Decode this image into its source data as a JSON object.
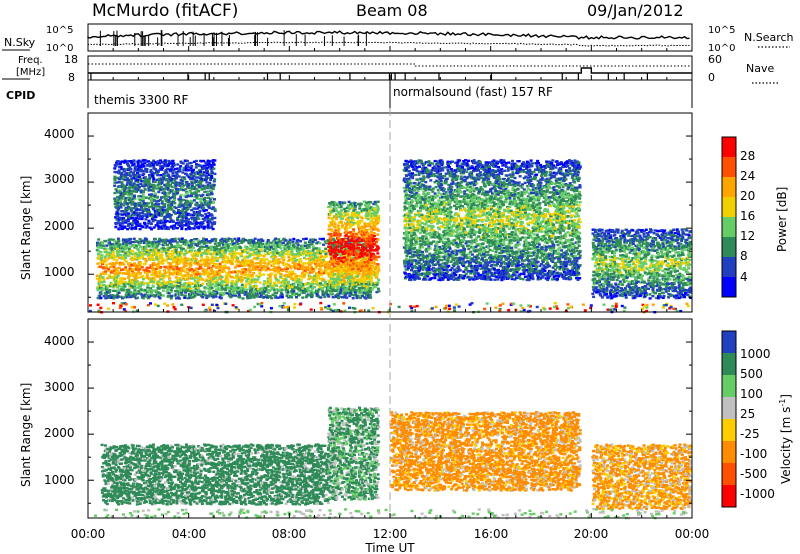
{
  "header": {
    "station": "McMurdo (fitACF)",
    "beam": "Beam 08",
    "date": "09/Jan/2012"
  },
  "noise_panel": {
    "left_label": "N.Sky",
    "left_ticks": [
      "10^5",
      "10^0"
    ],
    "right_ticks": [
      "10^5",
      "10^0"
    ],
    "right_label": "N.Search"
  },
  "freq_panel": {
    "left_label_1": "Freq.",
    "left_label_2": "[MHz]",
    "left_ticks": [
      "18",
      "8"
    ],
    "right_ticks": [
      "60",
      "0"
    ],
    "right_label": "Nave"
  },
  "cpid_panel": {
    "label": "CPID",
    "modes": [
      "themis 3300 RF",
      "normalsound (fast) 157 RF"
    ]
  },
  "x_axis": {
    "label": "Time UT",
    "ticks": [
      "00:00",
      "04:00",
      "08:00",
      "12:00",
      "16:00",
      "20:00",
      "00:00"
    ]
  },
  "range_axis": {
    "label": "Slant Range [km]",
    "ticks": [
      "1000",
      "2000",
      "3000",
      "4000"
    ]
  },
  "power_scale": {
    "label": "Power [dB]",
    "ticks": [
      "4",
      "8",
      "12",
      "16",
      "20",
      "24",
      "28"
    ],
    "colors": [
      "#0000ff",
      "#2040c0",
      "#2e8b57",
      "#66cd66",
      "#f0d000",
      "#ffa500",
      "#ff5000",
      "#ff0000"
    ]
  },
  "velocity_scale": {
    "label_main": "Velocity [m s",
    "label_sup": "-1",
    "label_end": "]",
    "ticks": [
      "1000",
      "500",
      "100",
      "25",
      "-25",
      "-100",
      "-500",
      "-1000"
    ],
    "colors": [
      "#2040c0",
      "#2e8b57",
      "#66cd66",
      "#c0c0c0",
      "#ffcc00",
      "#ff8c00",
      "#ff5000",
      "#ff0000"
    ]
  },
  "chart_data": [
    {
      "type": "heatmap",
      "title": "Power",
      "xlabel": "Time UT",
      "ylabel": "Slant Range [km]",
      "x_range_hours": [
        0,
        24
      ],
      "ylim_km": [
        180,
        4500
      ],
      "colorbar": "Power [dB]",
      "colorbar_range": [
        0,
        30
      ],
      "echo_regions": [
        {
          "start_h": 0.3,
          "end_h": 11.2,
          "range_low_km": 500,
          "range_high_km": 1800,
          "value_dB": 18
        },
        {
          "start_h": 1.0,
          "end_h": 5.0,
          "range_low_km": 2000,
          "range_high_km": 3500,
          "value_dB": 8
        },
        {
          "start_h": 9.5,
          "end_h": 11.5,
          "range_low_km": 600,
          "range_high_km": 2600,
          "value_dB": 24
        },
        {
          "start_h": 12.5,
          "end_h": 19.5,
          "range_low_km": 900,
          "range_high_km": 3500,
          "value_dB": 12
        },
        {
          "start_h": 20.0,
          "end_h": 23.9,
          "range_low_km": 500,
          "range_high_km": 2000,
          "value_dB": 12
        }
      ]
    },
    {
      "type": "heatmap",
      "title": "Velocity",
      "xlabel": "Time UT",
      "ylabel": "Slant Range [km]",
      "x_range_hours": [
        0,
        24
      ],
      "ylim_km": [
        180,
        4500
      ],
      "colorbar": "Velocity [m s-1]",
      "colorbar_range": [
        -1000,
        1000
      ],
      "echo_regions": [
        {
          "start_h": 0.5,
          "end_h": 9.5,
          "range_low_km": 500,
          "range_high_km": 1800,
          "value_ms": 300
        },
        {
          "start_h": 9.5,
          "end_h": 11.5,
          "range_low_km": 600,
          "range_high_km": 2600,
          "value_ms": 150
        },
        {
          "start_h": 12.0,
          "end_h": 19.5,
          "range_low_km": 800,
          "range_high_km": 2500,
          "value_ms": -200
        },
        {
          "start_h": 20.0,
          "end_h": 23.9,
          "range_low_km": 400,
          "range_high_km": 1800,
          "value_ms": -150
        }
      ]
    }
  ]
}
